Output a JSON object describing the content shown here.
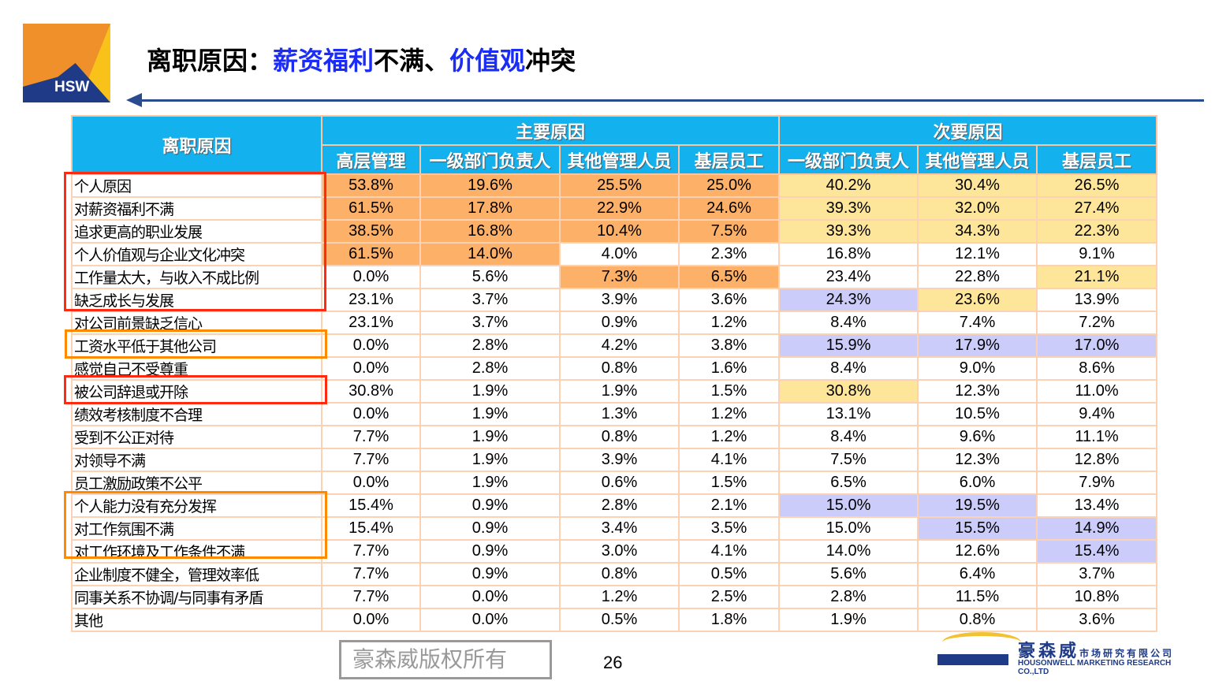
{
  "logo": {
    "text": "HSW"
  },
  "title": {
    "p1": "离职原因：",
    "p2": "薪资福利",
    "p3": "不满、",
    "p4": "价值观",
    "p5": "冲突"
  },
  "table": {
    "corner": "离职原因",
    "group_primary": "主要原因",
    "group_secondary": "次要原因",
    "columns": [
      "高层管理",
      "一级部门负责人",
      "其他管理人员",
      "基层员工",
      "一级部门负责人",
      "其他管理人员",
      "基层员工"
    ],
    "highlight_colors": {
      "o": "#fdb067",
      "y": "#fde599",
      "p": "#ccccfb"
    },
    "rows": [
      {
        "label": "个人原因",
        "values": [
          "53.8%",
          "19.6%",
          "25.5%",
          "25.0%",
          "40.2%",
          "30.4%",
          "26.5%"
        ],
        "hl": "ooooyyy"
      },
      {
        "label": "对薪资福利不满",
        "values": [
          "61.5%",
          "17.8%",
          "22.9%",
          "24.6%",
          "39.3%",
          "32.0%",
          "27.4%"
        ],
        "hl": "ooooyyy"
      },
      {
        "label": "追求更高的职业发展",
        "values": [
          "38.5%",
          "16.8%",
          "10.4%",
          "7.5%",
          "39.3%",
          "34.3%",
          "22.3%"
        ],
        "hl": "ooooyyy"
      },
      {
        "label": "个人价值观与企业文化冲突",
        "values": [
          "61.5%",
          "14.0%",
          "4.0%",
          "2.3%",
          "16.8%",
          "12.1%",
          "9.1%"
        ],
        "hl": "oo-----"
      },
      {
        "label": "工作量太大，与收入不成比例",
        "values": [
          "0.0%",
          "5.6%",
          "7.3%",
          "6.5%",
          "23.4%",
          "22.8%",
          "21.1%"
        ],
        "hl": "--oo--y"
      },
      {
        "label": "缺乏成长与发展",
        "values": [
          "23.1%",
          "3.7%",
          "3.9%",
          "3.6%",
          "24.3%",
          "23.6%",
          "13.9%"
        ],
        "hl": "----py-"
      },
      {
        "label": "对公司前景缺乏信心",
        "values": [
          "23.1%",
          "3.7%",
          "0.9%",
          "1.2%",
          "8.4%",
          "7.4%",
          "7.2%"
        ],
        "hl": "-------"
      },
      {
        "label": "工资水平低于其他公司",
        "values": [
          "0.0%",
          "2.8%",
          "4.2%",
          "3.8%",
          "15.9%",
          "17.9%",
          "17.0%"
        ],
        "hl": "----ppp"
      },
      {
        "label": "感觉自己不受尊重",
        "values": [
          "0.0%",
          "2.8%",
          "0.8%",
          "1.6%",
          "8.4%",
          "9.0%",
          "8.6%"
        ],
        "hl": "-------"
      },
      {
        "label": "被公司辞退或开除",
        "values": [
          "30.8%",
          "1.9%",
          "1.9%",
          "1.5%",
          "30.8%",
          "12.3%",
          "11.0%"
        ],
        "hl": "----y--"
      },
      {
        "label": "绩效考核制度不合理",
        "values": [
          "0.0%",
          "1.9%",
          "1.3%",
          "1.2%",
          "13.1%",
          "10.5%",
          "9.4%"
        ],
        "hl": "-------"
      },
      {
        "label": "受到不公正对待",
        "values": [
          "7.7%",
          "1.9%",
          "0.8%",
          "1.2%",
          "8.4%",
          "9.6%",
          "11.1%"
        ],
        "hl": "-------"
      },
      {
        "label": "对领导不满",
        "values": [
          "7.7%",
          "1.9%",
          "3.9%",
          "4.1%",
          "7.5%",
          "12.3%",
          "12.8%"
        ],
        "hl": "-------"
      },
      {
        "label": "员工激励政策不公平",
        "values": [
          "0.0%",
          "1.9%",
          "0.6%",
          "1.5%",
          "6.5%",
          "6.0%",
          "7.9%"
        ],
        "hl": "-------"
      },
      {
        "label": "个人能力没有充分发挥",
        "values": [
          "15.4%",
          "0.9%",
          "2.8%",
          "2.1%",
          "15.0%",
          "19.5%",
          "13.4%"
        ],
        "hl": "----pp-"
      },
      {
        "label": "对工作氛围不满",
        "values": [
          "15.4%",
          "0.9%",
          "3.4%",
          "3.5%",
          "15.0%",
          "15.5%",
          "14.9%"
        ],
        "hl": "-----pp"
      },
      {
        "label": "对工作环境及工作条件不满",
        "values": [
          "7.7%",
          "0.9%",
          "3.0%",
          "4.1%",
          "14.0%",
          "12.6%",
          "15.4%"
        ],
        "hl": "------p"
      },
      {
        "label": "企业制度不健全，管理效率低",
        "values": [
          "7.7%",
          "0.9%",
          "0.8%",
          "0.5%",
          "5.6%",
          "6.4%",
          "3.7%"
        ],
        "hl": "-------"
      },
      {
        "label": "同事关系不协调/与同事有矛盾",
        "values": [
          "7.7%",
          "0.0%",
          "1.2%",
          "2.5%",
          "2.8%",
          "11.5%",
          "10.8%"
        ],
        "hl": "-------"
      },
      {
        "label": "其他",
        "values": [
          "0.0%",
          "0.0%",
          "0.5%",
          "1.8%",
          "1.9%",
          "0.8%",
          "3.6%"
        ],
        "hl": "-------"
      }
    ]
  },
  "watermark": "豪森威版权所有",
  "page_number": "26",
  "footer_logo": {
    "cn": "豪森威",
    "cn_sub": "市场研究有限公司",
    "en": "HOUSONWELL MARKETING RESEARCH CO.,LTD"
  }
}
